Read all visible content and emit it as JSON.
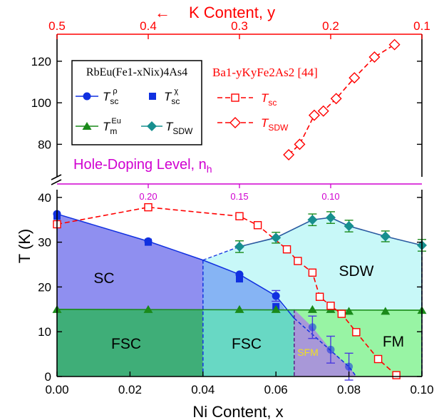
{
  "colors": {
    "sc_fill": "#8f8ff0",
    "fsc_fill": "#3fae78",
    "fsc2_fill": "#68d8c4",
    "sdw_fill": "#c8f8f8",
    "fm_fill": "#98f4a4",
    "sfm_fill": "#a898d8",
    "tsc": "#1030e0",
    "tm": "#1a8a1a",
    "tsdw": "#178f8f",
    "ba": "#ff0000",
    "nh": "#d000d0"
  },
  "chart_data": {
    "type": "scatter",
    "top_axis": {
      "label_arrow": "←",
      "label": "K Content, y",
      "ticks": [
        "0.5",
        "0.4",
        "0.3",
        "0.2",
        "0.1"
      ],
      "values": [
        0.5,
        0.4,
        0.3,
        0.2,
        0.1
      ]
    },
    "bottom_axis": {
      "label": "Ni Content, x",
      "ticks": [
        "0.00",
        "0.02",
        "0.04",
        "0.06",
        "0.08",
        "0.10"
      ],
      "values": [
        0.0,
        0.02,
        0.04,
        0.06,
        0.08,
        0.1
      ],
      "xlim": [
        0.0,
        0.1
      ]
    },
    "y_axis": {
      "label": "T (K)",
      "lower_ticks": [
        "0",
        "10",
        "20",
        "30",
        "40"
      ],
      "lower_values": [
        0,
        10,
        20,
        30,
        40
      ],
      "upper_ticks": [
        "80",
        "100",
        "120"
      ],
      "upper_values": [
        80,
        100,
        120
      ],
      "lower_ylim": [
        0,
        43
      ],
      "upper_ylim": [
        64,
        133
      ]
    },
    "hole_doping_axis": {
      "label": "Hole-Doping Level, n",
      "subscript": "h",
      "ticks": [
        "0.20",
        "0.15",
        "0.10"
      ],
      "x_positions": [
        0.025,
        0.05,
        0.075
      ]
    },
    "legend_left": {
      "title": "RbEu(Fe1-xNix)4As4",
      "entries": [
        "Tsc ρ",
        "Tsc χ",
        "Tm Eu",
        "TSDW"
      ]
    },
    "legend_right": {
      "title": "Ba1-yKyFe2As2 [44]",
      "entries": [
        "Tsc",
        "TSDW"
      ]
    },
    "phases": [
      "SC",
      "SDW",
      "FSC",
      "FSC",
      "SFM",
      "FM"
    ],
    "series": [
      {
        "name": "Tsc ρ",
        "x": [
          0.0,
          0.025,
          0.05,
          0.06,
          0.07,
          0.075,
          0.08
        ],
        "y": [
          36.3,
          30.2,
          22.8,
          18.0,
          11.0,
          6.0,
          2.2
        ],
        "err": [
          0,
          0,
          0,
          1.2,
          2.5,
          3.0,
          3.0
        ]
      },
      {
        "name": "Tsc χ",
        "x": [
          0.0,
          0.025,
          0.05,
          0.06
        ],
        "y": [
          35.8,
          30.0,
          21.8,
          15.6
        ]
      },
      {
        "name": "Tm Eu",
        "x": [
          0.0,
          0.025,
          0.05,
          0.06,
          0.07,
          0.075,
          0.08,
          0.09,
          0.1
        ],
        "y": [
          15.0,
          15.0,
          15.0,
          15.0,
          15.0,
          15.0,
          14.6,
          14.6,
          14.8
        ]
      },
      {
        "name": "TSDW",
        "x": [
          0.05,
          0.06,
          0.07,
          0.075,
          0.08,
          0.09,
          0.1
        ],
        "y": [
          29.0,
          31.0,
          35.0,
          35.5,
          33.6,
          31.3,
          29.3
        ],
        "err": [
          1.3,
          1.2,
          1.3,
          1.3,
          1.3,
          1.2,
          1.3
        ]
      },
      {
        "name": "Ba Tsc",
        "x": [
          0.0,
          0.025,
          0.05,
          0.055,
          0.063,
          0.066,
          0.07,
          0.072,
          0.075,
          0.078,
          0.082,
          0.088,
          0.093
        ],
        "y": [
          34.0,
          37.8,
          35.8,
          33.8,
          28.4,
          25.8,
          23.2,
          17.8,
          15.8,
          14.0,
          9.9,
          3.9,
          0.3
        ]
      },
      {
        "name": "Ba TSDW",
        "x": [
          0.0635,
          0.0665,
          0.0705,
          0.073,
          0.0765,
          0.0815,
          0.087,
          0.0925
        ],
        "y": [
          75,
          80,
          94,
          96,
          102,
          112,
          122,
          128
        ]
      }
    ]
  }
}
